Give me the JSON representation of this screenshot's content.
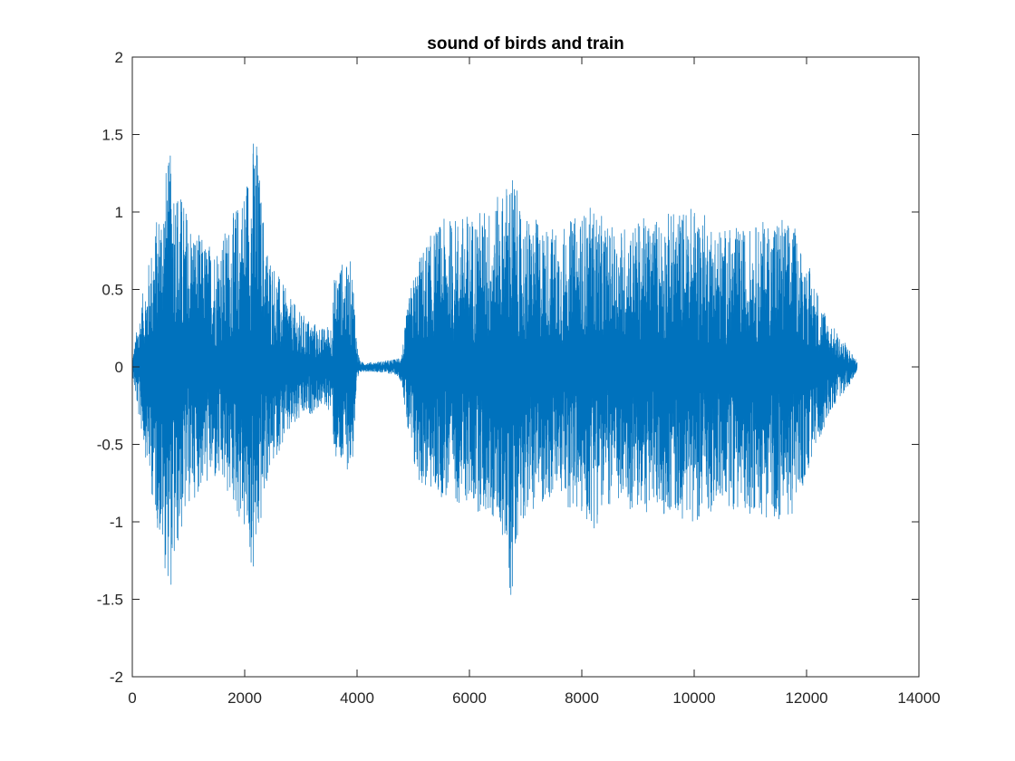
{
  "chart_data": {
    "type": "line",
    "title": "sound of birds and train",
    "xlabel": "",
    "ylabel": "",
    "xlim": [
      0,
      14000
    ],
    "ylim": [
      -2,
      2
    ],
    "xticks": [
      0,
      2000,
      4000,
      6000,
      8000,
      10000,
      12000,
      14000
    ],
    "xtick_labels": [
      "0",
      "2000",
      "4000",
      "6000",
      "8000",
      "10000",
      "12000",
      "14000"
    ],
    "yticks": [
      -2,
      -1.5,
      -1,
      -0.5,
      0,
      0.5,
      1,
      1.5,
      2
    ],
    "ytick_labels": [
      "-2",
      "-1.5",
      "-1",
      "-0.5",
      "0",
      "0.5",
      "1",
      "1.5",
      "2"
    ],
    "grid": false,
    "box": true,
    "series_color": "#0072BD",
    "series": [
      {
        "sample_count": 12900,
        "envelope": {
          "x": [
            0,
            100,
            200,
            400,
            600,
            700,
            800,
            1000,
            1200,
            1400,
            1600,
            1800,
            2000,
            2150,
            2200,
            2300,
            2400,
            2600,
            2800,
            3000,
            3200,
            3400,
            3550,
            3600,
            3700,
            3800,
            3900,
            3950,
            4000,
            4050,
            4100,
            4300,
            4500,
            4700,
            4800,
            4900,
            5000,
            5200,
            5500,
            6000,
            6400,
            6600,
            6750,
            6800,
            6900,
            7200,
            7600,
            8000,
            8200,
            8500,
            9000,
            9500,
            10000,
            10500,
            11000,
            11500,
            11800,
            12100,
            12200,
            12400,
            12600,
            12800,
            12900
          ],
          "upper": [
            0.05,
            0.3,
            0.5,
            0.9,
            1.3,
            1.4,
            1.2,
            1.0,
            0.85,
            0.8,
            0.85,
            1.0,
            1.2,
            1.5,
            1.55,
            1.1,
            0.8,
            0.6,
            0.45,
            0.35,
            0.3,
            0.25,
            0.3,
            0.6,
            0.7,
            0.65,
            0.7,
            0.5,
            0.15,
            0.04,
            0.03,
            0.03,
            0.04,
            0.05,
            0.1,
            0.4,
            0.6,
            0.8,
            0.95,
            1.0,
            1.05,
            1.15,
            1.3,
            1.25,
            1.0,
            0.95,
            0.9,
            1.0,
            1.05,
            0.9,
            0.95,
            1.0,
            1.05,
            0.9,
            0.9,
            1.0,
            0.9,
            0.6,
            0.5,
            0.3,
            0.2,
            0.1,
            0.03
          ],
          "lower": [
            -0.05,
            -0.3,
            -0.5,
            -0.95,
            -1.35,
            -1.45,
            -1.2,
            -0.9,
            -0.8,
            -0.75,
            -0.8,
            -0.9,
            -1.1,
            -1.4,
            -1.3,
            -1.0,
            -0.75,
            -0.55,
            -0.45,
            -0.35,
            -0.3,
            -0.25,
            -0.3,
            -0.6,
            -0.7,
            -0.65,
            -0.7,
            -0.5,
            -0.15,
            -0.04,
            -0.03,
            -0.03,
            -0.04,
            -0.05,
            -0.1,
            -0.45,
            -0.7,
            -0.8,
            -0.85,
            -0.9,
            -1.0,
            -1.1,
            -1.6,
            -1.2,
            -1.0,
            -0.9,
            -0.85,
            -1.0,
            -1.05,
            -0.9,
            -0.95,
            -0.95,
            -1.0,
            -0.9,
            -0.95,
            -1.0,
            -0.95,
            -0.6,
            -0.5,
            -0.3,
            -0.2,
            -0.1,
            -0.03
          ]
        }
      }
    ]
  }
}
